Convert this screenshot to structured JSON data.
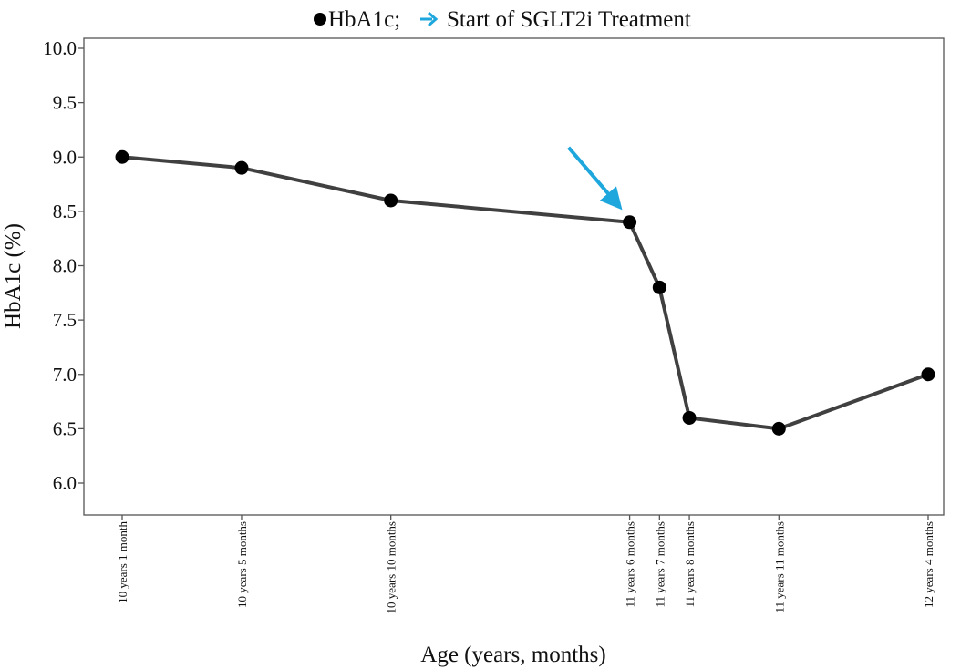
{
  "chart_data": {
    "type": "line",
    "legend": {
      "series_label": "HbA1c;",
      "arrow_label": "Start of SGLT2i Treatment",
      "placement": "top-center"
    },
    "xlabel": "Age (years, months)",
    "ylabel": "HbA1c (%)",
    "ylim": [
      5.7,
      10.1
    ],
    "yticks": [
      "6.0",
      "6.5",
      "7.0",
      "7.5",
      "8.0",
      "8.5",
      "9.0",
      "9.5",
      "10.0"
    ],
    "ytick_values": [
      6.0,
      6.5,
      7.0,
      7.5,
      8.0,
      8.5,
      9.0,
      9.5,
      10.0
    ],
    "xlim_months": [
      121,
      148
    ],
    "x_months": [
      121,
      125,
      130,
      138,
      139,
      140,
      143,
      148
    ],
    "categories": [
      "10 years 1 month",
      "10 years 5 months",
      "10 years 10 months",
      "11 years 6 months",
      "11 years 7 months",
      "11 years 8 months",
      "11 years 11 months",
      "12 years 4 months"
    ],
    "series": [
      {
        "name": "HbA1c",
        "values": [
          9.0,
          8.9,
          8.6,
          8.4,
          7.8,
          6.6,
          6.5,
          7.0
        ]
      }
    ],
    "annotation": {
      "type": "arrow",
      "points_to": "11 years 6 months",
      "meaning": "Start of SGLT2i Treatment"
    },
    "grid": false,
    "colors": {
      "line": "#404040",
      "marker": "#000000",
      "arrow": "#1ea7dc",
      "frame": "#555555"
    }
  }
}
